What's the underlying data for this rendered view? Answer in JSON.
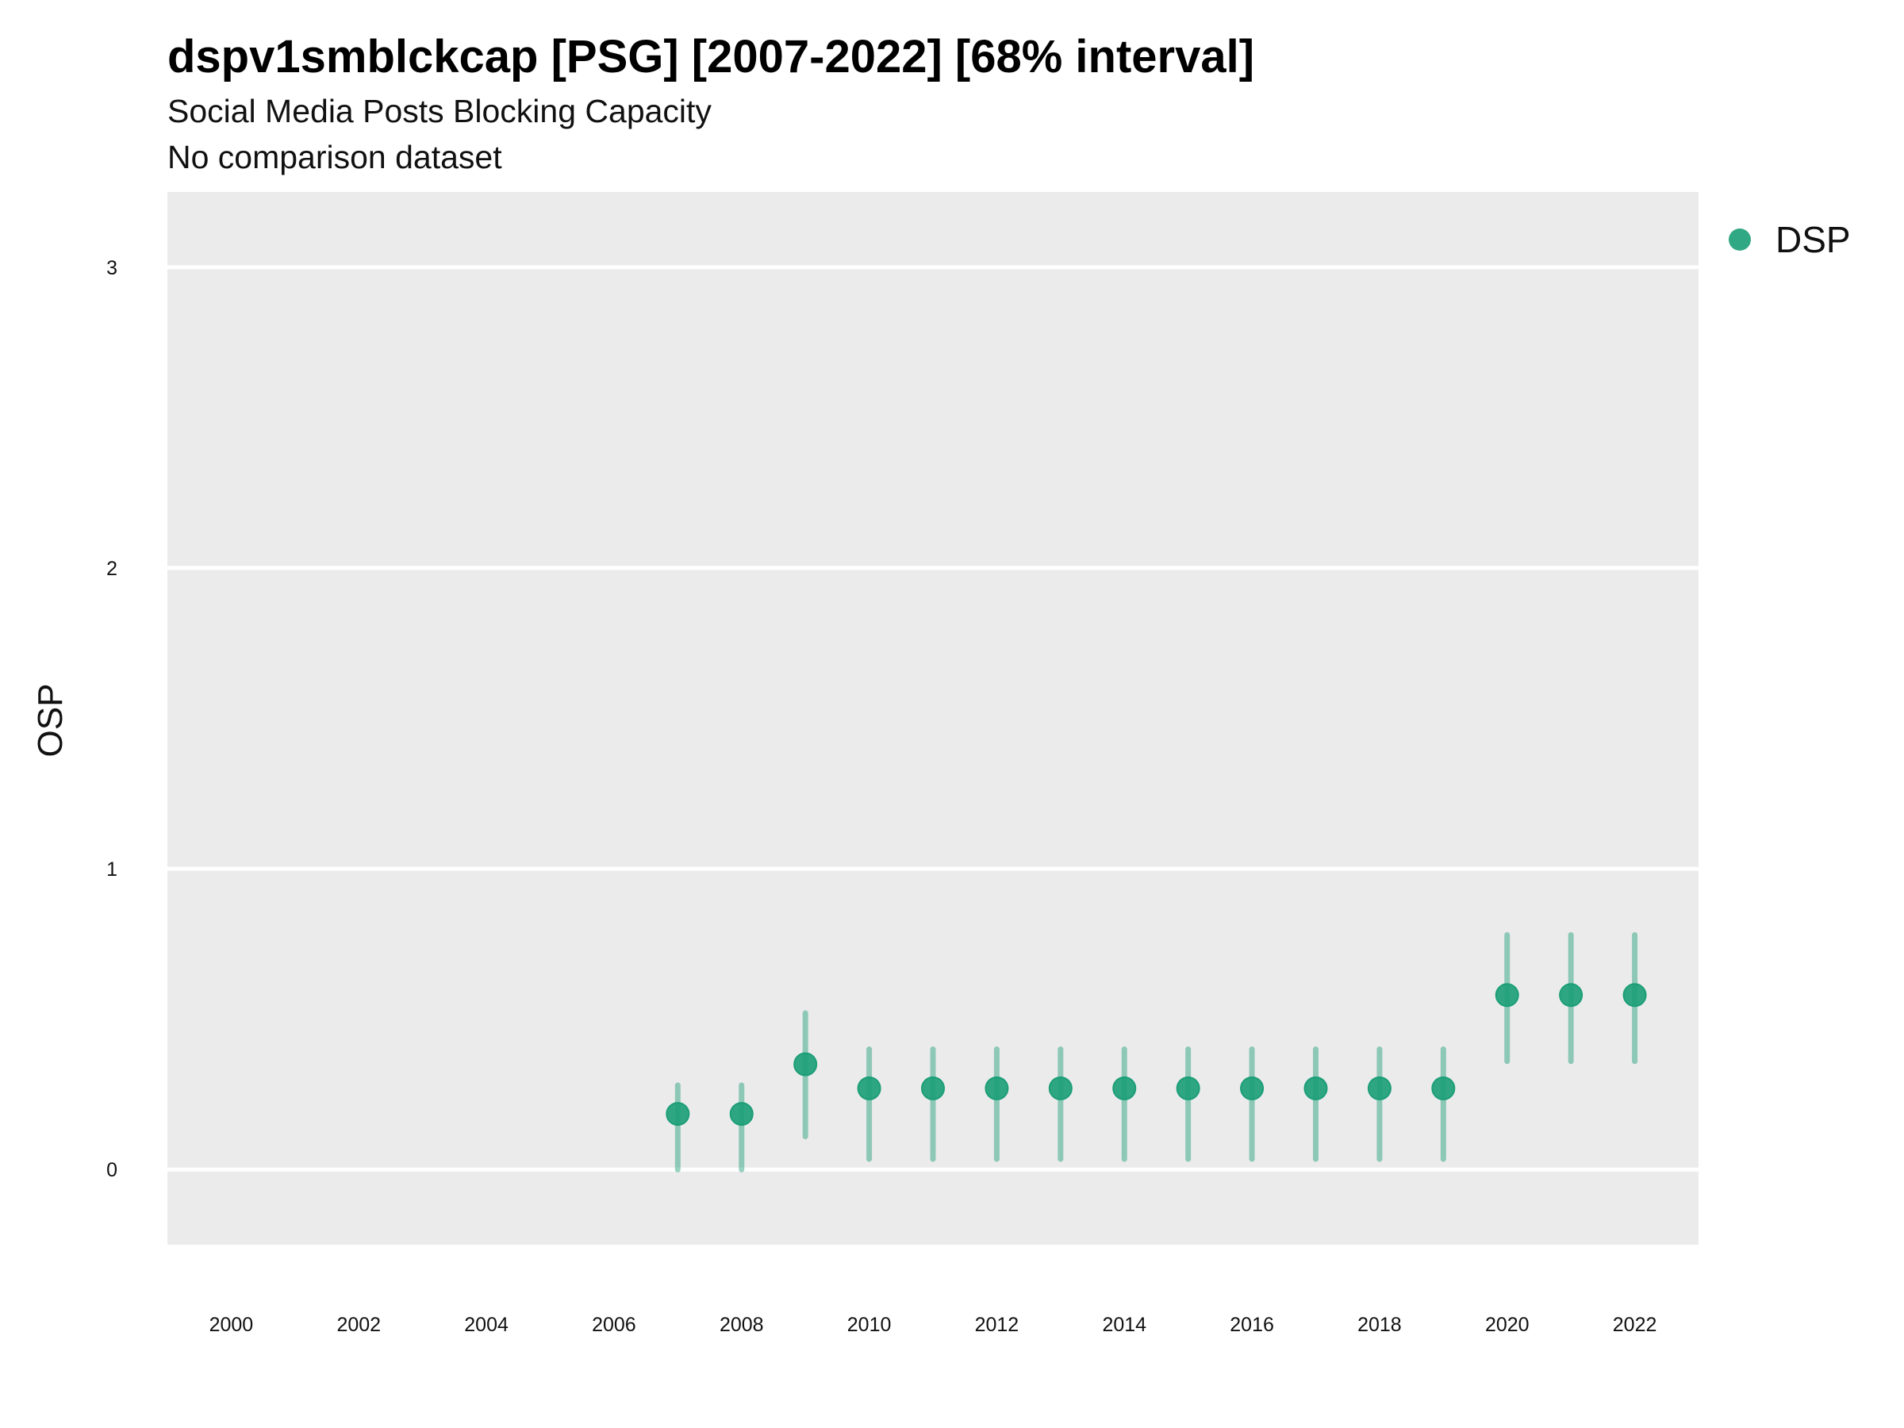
{
  "header": {
    "title": "dspv1smblckcap [PSG] [2007-2022] [68% interval]",
    "subtitle": "Social Media Posts Blocking Capacity",
    "subtitle2": "No comparison dataset"
  },
  "chart_data": {
    "type": "scatter",
    "ylabel": "OSP",
    "xlabel": "",
    "x_ticks": [
      2000,
      2002,
      2004,
      2006,
      2008,
      2010,
      2012,
      2014,
      2016,
      2018,
      2020,
      2022
    ],
    "y_ticks": [
      0,
      1,
      2,
      3
    ],
    "xlim": [
      1999,
      2023
    ],
    "ylim": [
      -0.25,
      3.25
    ],
    "grid": true,
    "legend_position": "top-right",
    "colors": {
      "series": "#1b9e77",
      "panel": "#ebebeb",
      "grid": "#ffffff"
    },
    "series": [
      {
        "name": "DSP",
        "x": [
          2007,
          2008,
          2009,
          2010,
          2011,
          2012,
          2013,
          2014,
          2015,
          2016,
          2017,
          2018,
          2019,
          2020,
          2021,
          2022
        ],
        "y": [
          0.185,
          0.185,
          0.35,
          0.27,
          0.27,
          0.27,
          0.27,
          0.27,
          0.27,
          0.27,
          0.27,
          0.27,
          0.27,
          0.58,
          0.58,
          0.58
        ],
        "lower": [
          0.0,
          0.0,
          0.11,
          0.035,
          0.035,
          0.035,
          0.035,
          0.035,
          0.035,
          0.035,
          0.035,
          0.035,
          0.035,
          0.36,
          0.36,
          0.36
        ],
        "upper": [
          0.28,
          0.28,
          0.52,
          0.4,
          0.4,
          0.4,
          0.4,
          0.4,
          0.4,
          0.4,
          0.4,
          0.4,
          0.4,
          0.78,
          0.78,
          0.78
        ]
      }
    ]
  }
}
